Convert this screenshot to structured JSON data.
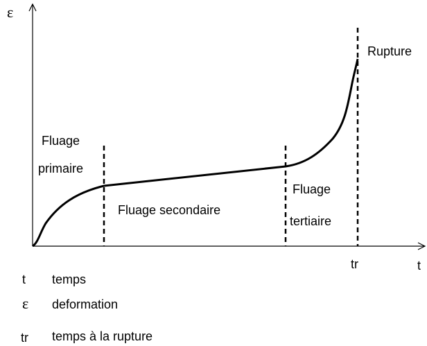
{
  "axes": {
    "y_label": "ε",
    "x_label": "t",
    "x_mark": "tr"
  },
  "regions": [
    {
      "lines": [
        "Fluage",
        "primaire"
      ]
    },
    {
      "lines": [
        "Fluage secondaire"
      ]
    },
    {
      "lines": [
        "Fluage",
        "tertiaire"
      ]
    }
  ],
  "annotation": "Rupture",
  "legend": [
    {
      "symbol": "t",
      "text": "temps"
    },
    {
      "symbol": "ε",
      "text": "deformation"
    },
    {
      "symbol": "tr",
      "text": "temps à la rupture"
    }
  ]
}
